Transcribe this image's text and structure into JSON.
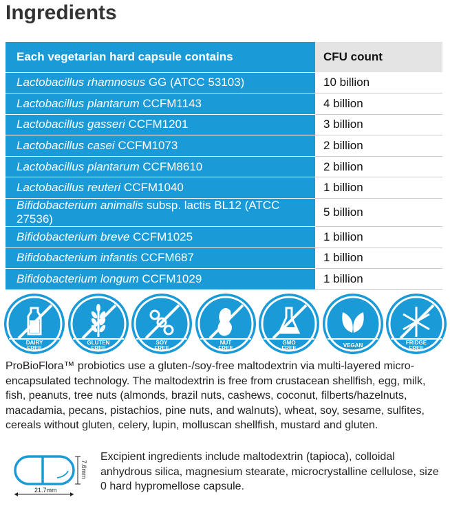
{
  "title": "Ingredients",
  "table": {
    "headers": [
      "Each vegetarian hard capsule contains",
      "CFU count"
    ],
    "rows": [
      {
        "species": "Lactobacillus rhamnosus",
        "strain": " GG (ATCC 53103)",
        "cfu": "10 billion"
      },
      {
        "species": "Lactobacillus plantarum",
        "strain": " CCFM1143",
        "cfu": "4 billion"
      },
      {
        "species": "Lactobacillus gasseri",
        "strain": " CCFM1201",
        "cfu": "3 billion"
      },
      {
        "species": "Lactobacillus casei",
        "strain": " CCFM1073",
        "cfu": "2 billion"
      },
      {
        "species": "Lactobacillus plantarum",
        "strain": " CCFM8610",
        "cfu": "2 billion"
      },
      {
        "species": "Lactobacillus reuteri",
        "strain": " CCFM1040",
        "cfu": "1 billion"
      },
      {
        "species": "Bifidobacterium animalis",
        "strain": " subsp. lactis BL12 (ATCC 27536)",
        "cfu": "5 billion"
      },
      {
        "species": "Bifidobacterium breve",
        "strain": " CCFM1025",
        "cfu": "1 billion"
      },
      {
        "species": "Bifidobacterium infantis",
        "strain": " CCFM687",
        "cfu": "1 billion"
      },
      {
        "species": "Bifidobacterium longum",
        "strain": " CCFM1029",
        "cfu": "1 billion"
      }
    ]
  },
  "badges": [
    {
      "icon": "milk-bottle-icon",
      "line1": "DAIRY",
      "line2": "FREE",
      "slash": true
    },
    {
      "icon": "wheat-icon",
      "line1": "GLUTEN",
      "line2": "FREE",
      "slash": true
    },
    {
      "icon": "soybean-icon",
      "line1": "SOY",
      "line2": "FREE",
      "slash": true
    },
    {
      "icon": "peanut-icon",
      "line1": "NUT",
      "line2": "FREE",
      "slash": true
    },
    {
      "icon": "flask-icon",
      "line1": "GMO",
      "line2": "FREE",
      "slash": true
    },
    {
      "icon": "leaves-icon",
      "line1": "VEGAN",
      "line2": "",
      "slash": false
    },
    {
      "icon": "snowflake-icon",
      "line1": "FRIDGE",
      "line2": "FREE",
      "slash": true
    }
  ],
  "accent": "#1a9ad7",
  "paragraph": "ProBioFlora™ probiotics use a gluten-/soy-free maltodextrin via multi-layered micro-encapsulated technology. The maltodextrin is free from crustacean shellfish, egg, milk, fish, peanuts, tree nuts (almonds, brazil nuts, cashews, coconut, filberts/hazelnuts, macadamia, pecans, pistachios, pine nuts, and walnuts), wheat, soy, sesame, sulfites, cereals without gluten, celery, lupin, molluscan shellfish, mustard and gluten.",
  "capsule": {
    "length": "21.7mm",
    "diameter": "7.6mm"
  },
  "excipients": "Excipient ingredients include maltodextrin (tapioca), colloidal anhydrous silica, magnesium stearate, microcrystalline cellulose, size 0 hard hypromellose capsule."
}
